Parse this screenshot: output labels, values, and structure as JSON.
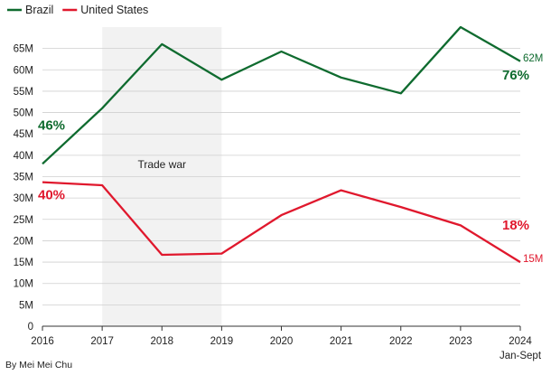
{
  "chart_data": {
    "type": "line",
    "x": [
      "2016",
      "2017",
      "2018",
      "2019",
      "2020",
      "2021",
      "2022",
      "2023",
      "2024"
    ],
    "x_sublabel_last": "Jan-Sept",
    "ylim": [
      0,
      70000000
    ],
    "yticks": [
      0,
      5000000,
      10000000,
      15000000,
      20000000,
      25000000,
      30000000,
      35000000,
      40000000,
      45000000,
      50000000,
      55000000,
      60000000,
      65000000
    ],
    "ytick_labels": [
      "0",
      "5M",
      "10M",
      "15M",
      "20M",
      "25M",
      "30M",
      "35M",
      "40M",
      "45M",
      "50M",
      "55M",
      "60M",
      "65M"
    ],
    "grid": true,
    "legend_placement": "top-left",
    "series": [
      {
        "name": "Brazil",
        "color": "#0f6b2f",
        "values": [
          38000000,
          51000000,
          66000000,
          57700000,
          64300000,
          58200000,
          54500000,
          70000000,
          62000000
        ],
        "end_label": "62M",
        "start_pct": "46%",
        "end_pct": "76%"
      },
      {
        "name": "United States",
        "color": "#e0182d",
        "values": [
          33700000,
          33000000,
          16700000,
          17000000,
          26000000,
          31800000,
          27900000,
          23600000,
          15000000
        ],
        "end_label": "15M",
        "start_pct": "40%",
        "end_pct": "18%"
      }
    ],
    "annotations": [
      {
        "label": "Trade war",
        "x_from": "2017",
        "x_to": "2019",
        "shade_color": "#f2f2f2"
      }
    ]
  },
  "credit": "By Mei Mei Chu"
}
